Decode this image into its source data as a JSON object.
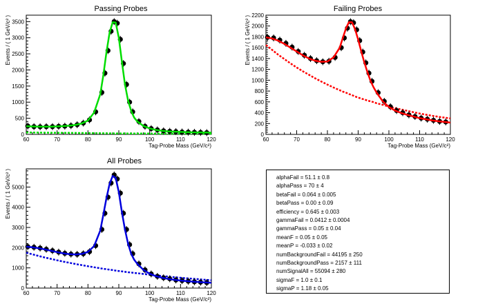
{
  "colors": {
    "data_points": "#000000",
    "pass_fit": "#00dd00",
    "fail_fit": "#ff0000",
    "all_fit": "#0000dd"
  },
  "chart_data": [
    {
      "type": "scatter",
      "title": "Passing Probes",
      "xlabel": "Tag-Probe Mass (GeV/c²)",
      "ylabel": "Events / ( 1 GeV/c² )",
      "xlim": [
        60,
        120
      ],
      "ylim": [
        0,
        3700
      ],
      "xticks": [
        60,
        70,
        80,
        90,
        100,
        110,
        120
      ],
      "yticks": [
        500,
        1000,
        1500,
        2000,
        2500,
        3000,
        3500
      ],
      "fit_color": "#00dd00",
      "x": [
        60.5,
        62.5,
        64.5,
        66.5,
        68.5,
        70.5,
        72.5,
        74.5,
        76.5,
        78.5,
        80.5,
        82.5,
        84.5,
        85.5,
        86.5,
        87.5,
        88.5,
        89.5,
        90.5,
        91.5,
        92.5,
        93.5,
        94.5,
        96.5,
        98.5,
        100.5,
        102.5,
        104.5,
        106.5,
        108.5,
        110.5,
        112.5,
        114.5,
        116.5,
        118.5
      ],
      "y": [
        260,
        240,
        235,
        240,
        240,
        250,
        255,
        270,
        300,
        350,
        450,
        700,
        1300,
        1900,
        2600,
        3200,
        3500,
        3450,
        2950,
        2200,
        1550,
        1000,
        700,
        400,
        250,
        180,
        140,
        110,
        95,
        85,
        75,
        70,
        65,
        60,
        55
      ],
      "fit_x": [
        60,
        62,
        64,
        66,
        68,
        70,
        72,
        74,
        76,
        78,
        80,
        82,
        84,
        85,
        86,
        87,
        88,
        89,
        90,
        91,
        92,
        93,
        94,
        95,
        96,
        98,
        100,
        102,
        104,
        106,
        108,
        110,
        112,
        114,
        116,
        118,
        120
      ],
      "fit_y": [
        255,
        245,
        240,
        240,
        242,
        248,
        256,
        270,
        295,
        340,
        430,
        680,
        1250,
        1850,
        2550,
        3150,
        3480,
        3470,
        3000,
        2250,
        1550,
        1050,
        730,
        520,
        400,
        260,
        185,
        140,
        112,
        95,
        85,
        76,
        70,
        65,
        61,
        57,
        53
      ],
      "bkg_y": [
        60,
        58,
        56,
        54,
        52,
        50,
        48,
        46,
        44,
        42,
        40,
        38,
        36,
        35,
        34,
        33,
        32,
        31,
        30,
        30,
        29,
        28,
        28,
        27,
        27,
        26,
        25,
        24,
        24,
        23,
        22,
        22,
        21,
        21,
        20,
        20,
        19
      ]
    },
    {
      "type": "scatter",
      "title": "Failing Probes",
      "xlabel": "Tag-Probe Mass (GeV/c²)",
      "ylabel": "Events / ( 1 GeV/c² )",
      "xlim": [
        60,
        120
      ],
      "ylim": [
        0,
        2200
      ],
      "xticks": [
        60,
        70,
        80,
        90,
        100,
        110,
        120
      ],
      "yticks": [
        200,
        400,
        600,
        800,
        1000,
        1200,
        1400,
        1600,
        1800,
        2000,
        2200
      ],
      "fit_color": "#ff0000",
      "x": [
        60.5,
        62.5,
        64.5,
        66.5,
        68.5,
        70.5,
        72.5,
        74.5,
        76.5,
        78.5,
        80.5,
        82.5,
        84.5,
        85.5,
        86.5,
        87.5,
        88.5,
        89.5,
        90.5,
        91.5,
        92.5,
        93.5,
        94.5,
        96.5,
        98.5,
        100.5,
        102.5,
        104.5,
        106.5,
        108.5,
        110.5,
        112.5,
        114.5,
        116.5,
        118.5
      ],
      "y": [
        1790,
        1780,
        1740,
        1680,
        1610,
        1530,
        1460,
        1400,
        1360,
        1340,
        1350,
        1420,
        1600,
        1780,
        1960,
        2080,
        2060,
        1930,
        1730,
        1520,
        1320,
        1130,
        980,
        770,
        610,
        510,
        440,
        400,
        360,
        330,
        300,
        280,
        260,
        240,
        230
      ],
      "fit_x": [
        60,
        62,
        64,
        66,
        68,
        70,
        72,
        74,
        76,
        78,
        80,
        82,
        84,
        85,
        86,
        87,
        88,
        89,
        90,
        91,
        92,
        93,
        94,
        95,
        96,
        98,
        100,
        102,
        104,
        106,
        108,
        110,
        112,
        114,
        116,
        118,
        120
      ],
      "fit_y": [
        1790,
        1770,
        1730,
        1670,
        1600,
        1530,
        1460,
        1400,
        1360,
        1340,
        1345,
        1420,
        1600,
        1780,
        1950,
        2070,
        2070,
        1940,
        1750,
        1530,
        1330,
        1150,
        990,
        870,
        770,
        610,
        505,
        440,
        395,
        360,
        330,
        300,
        280,
        260,
        243,
        230,
        218
      ],
      "bkg_y": [
        1650,
        1560,
        1470,
        1390,
        1310,
        1235,
        1165,
        1100,
        1035,
        975,
        920,
        865,
        815,
        790,
        770,
        745,
        725,
        700,
        680,
        660,
        645,
        625,
        610,
        595,
        575,
        545,
        515,
        485,
        460,
        435,
        410,
        385,
        365,
        345,
        325,
        310,
        295
      ]
    },
    {
      "type": "scatter",
      "title": "All Probes",
      "xlabel": "Tag-Probe Mass (GeV/c²)",
      "ylabel": "Events / ( 1 GeV/c² )",
      "xlim": [
        60,
        120
      ],
      "ylim": [
        0,
        5900
      ],
      "xticks": [
        60,
        70,
        80,
        90,
        100,
        110,
        120
      ],
      "yticks": [
        1000,
        2000,
        3000,
        4000,
        5000
      ],
      "fit_color": "#0000dd",
      "x": [
        60.5,
        62.5,
        64.5,
        66.5,
        68.5,
        70.5,
        72.5,
        74.5,
        76.5,
        78.5,
        80.5,
        82.5,
        84.5,
        85.5,
        86.5,
        87.5,
        88.5,
        89.5,
        90.5,
        91.5,
        92.5,
        93.5,
        94.5,
        96.5,
        98.5,
        100.5,
        102.5,
        104.5,
        106.5,
        108.5,
        110.5,
        112.5,
        114.5,
        116.5,
        118.5
      ],
      "y": [
        2050,
        2020,
        1980,
        1920,
        1850,
        1780,
        1720,
        1680,
        1670,
        1700,
        1800,
        2100,
        2900,
        3700,
        4500,
        5200,
        5600,
        5400,
        4700,
        3700,
        2900,
        2150,
        1700,
        1200,
        900,
        700,
        580,
        510,
        460,
        400,
        370,
        340,
        310,
        290,
        270
      ],
      "fit_x": [
        60,
        62,
        64,
        66,
        68,
        70,
        72,
        74,
        76,
        78,
        80,
        82,
        84,
        85,
        86,
        87,
        88,
        89,
        90,
        91,
        92,
        93,
        94,
        95,
        96,
        98,
        100,
        102,
        104,
        106,
        108,
        110,
        112,
        114,
        116,
        118,
        120
      ],
      "fit_y": [
        2050,
        2020,
        1975,
        1915,
        1850,
        1780,
        1720,
        1680,
        1665,
        1690,
        1790,
        2080,
        2850,
        3650,
        4450,
        5150,
        5550,
        5450,
        4750,
        3750,
        2900,
        2200,
        1700,
        1400,
        1200,
        900,
        710,
        590,
        510,
        455,
        410,
        375,
        345,
        320,
        300,
        282,
        265
      ],
      "bkg_y": [
        1750,
        1670,
        1590,
        1515,
        1445,
        1375,
        1310,
        1250,
        1190,
        1135,
        1080,
        1030,
        980,
        955,
        935,
        910,
        890,
        865,
        845,
        825,
        805,
        785,
        770,
        750,
        735,
        700,
        665,
        630,
        600,
        570,
        540,
        510,
        485,
        460,
        435,
        410,
        390
      ]
    }
  ],
  "parameters": [
    {
      "name": "alphaFail",
      "value": "51.1 ± 0.8"
    },
    {
      "name": "alphaPass",
      "value": "70 ± 4"
    },
    {
      "name": "betaFail",
      "value": "0.064 ± 0.005"
    },
    {
      "name": "betaPass",
      "value": "0.00 ± 0.09"
    },
    {
      "name": "efficiency",
      "value": "0.645 ± 0.003"
    },
    {
      "name": "gammaFail",
      "value": "0.0412 ± 0.0004"
    },
    {
      "name": "gammaPass",
      "value": "0.05 ± 0.04"
    },
    {
      "name": "meanF",
      "value": "0.05 ± 0.05"
    },
    {
      "name": "meanP",
      "value": "-0.033 ± 0.02"
    },
    {
      "name": "numBackgroundFail",
      "value": "44195 ± 250"
    },
    {
      "name": "numBackgroundPass",
      "value": "2157 ± 111"
    },
    {
      "name": "numSignalAll",
      "value": "55094 ± 280"
    },
    {
      "name": "sigmaF",
      "value": "1.0 ± 0.1"
    },
    {
      "name": "sigmaP",
      "value": "1.18 ± 0.05"
    }
  ]
}
